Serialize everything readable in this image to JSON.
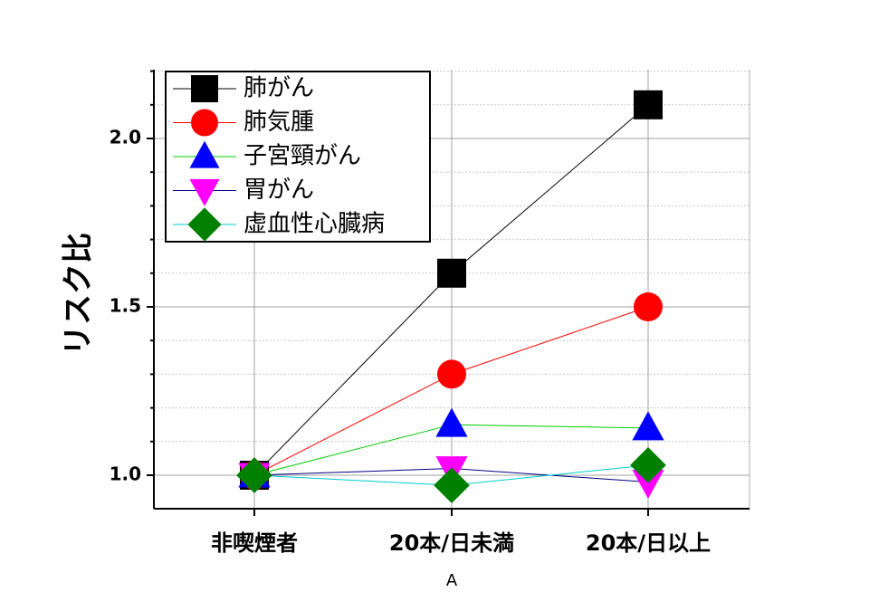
{
  "chart_data": {
    "type": "line",
    "xlabel": "A",
    "ylabel": "リスク比",
    "categories": [
      "非喫煙者",
      "20本/日未満",
      "20本/日以上"
    ],
    "ylim": [
      0.9,
      2.2
    ],
    "yticks": [
      "1.0",
      "1.5",
      "2.0"
    ],
    "grid": true,
    "legend_position": "top-left",
    "series": [
      {
        "name": "肺がん",
        "values": [
          1.0,
          1.6,
          2.1
        ],
        "color": "#000000",
        "marker": "square"
      },
      {
        "name": "肺気腫",
        "values": [
          1.0,
          1.3,
          1.5
        ],
        "color": "#ff0000",
        "marker": "circle"
      },
      {
        "name": "子宮頸がん",
        "values": [
          1.0,
          1.15,
          1.14
        ],
        "color": "#0000ff",
        "line_color": "#00cc00",
        "marker": "triangle-up"
      },
      {
        "name": "胃がん",
        "values": [
          1.0,
          1.02,
          0.98
        ],
        "color": "#ff00ff",
        "line_color": "#000080",
        "marker": "triangle-down"
      },
      {
        "name": "虚血性心臓病",
        "values": [
          1.0,
          0.97,
          1.03
        ],
        "color": "#008000",
        "line_color": "#00cccc",
        "marker": "diamond"
      }
    ]
  }
}
